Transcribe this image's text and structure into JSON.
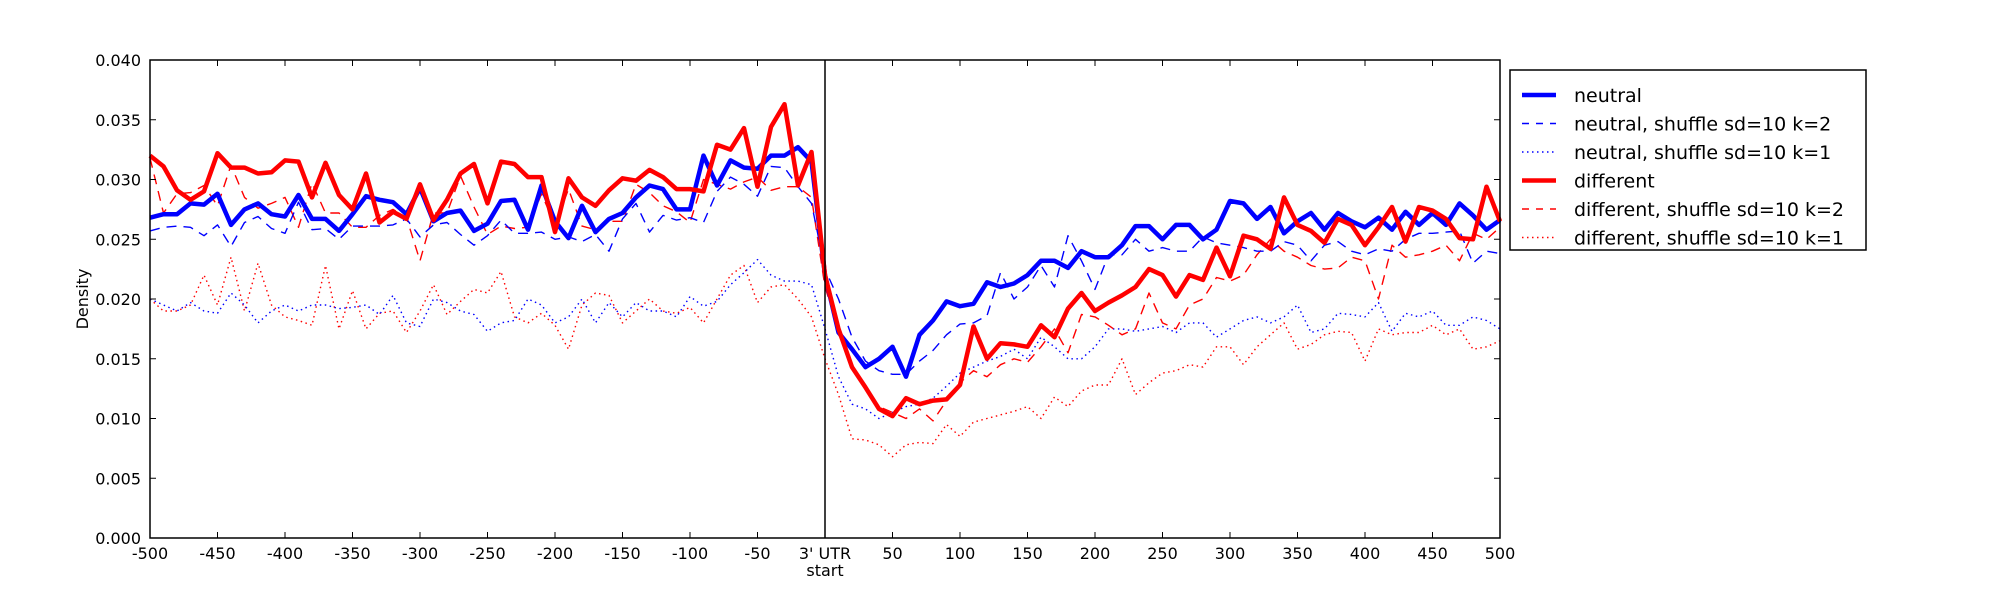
{
  "chart_data": {
    "type": "line",
    "title": "",
    "xlabel": "",
    "ylabel": "Density",
    "xlim": [
      -500,
      500
    ],
    "ylim": [
      0,
      0.04
    ],
    "grid": false,
    "legend_position": "outside-right-top",
    "vertical_marker": {
      "x": 0,
      "label": "3' UTR start"
    },
    "x_ticks": [
      "-500",
      "-450",
      "-400",
      "-350",
      "-300",
      "-250",
      "-200",
      "-150",
      "-100",
      "-50",
      "3' UTR\nstart",
      "50",
      "100",
      "150",
      "200",
      "250",
      "300",
      "350",
      "400",
      "450",
      "500"
    ],
    "x_tick_values": [
      -500,
      -450,
      -400,
      -350,
      -300,
      -250,
      -200,
      -150,
      -100,
      -50,
      0,
      50,
      100,
      150,
      200,
      250,
      300,
      350,
      400,
      450,
      500
    ],
    "y_ticks": [
      "0.000",
      "0.005",
      "0.010",
      "0.015",
      "0.020",
      "0.025",
      "0.030",
      "0.035",
      "0.040"
    ],
    "y_tick_values": [
      0,
      0.005,
      0.01,
      0.015,
      0.02,
      0.025,
      0.03,
      0.035,
      0.04
    ],
    "x": [
      -500,
      -490,
      -480,
      -470,
      -460,
      -450,
      -440,
      -430,
      -420,
      -410,
      -400,
      -390,
      -380,
      -370,
      -360,
      -350,
      -340,
      -330,
      -320,
      -310,
      -300,
      -290,
      -280,
      -270,
      -260,
      -250,
      -240,
      -230,
      -220,
      -210,
      -200,
      -190,
      -180,
      -170,
      -160,
      -150,
      -140,
      -130,
      -120,
      -110,
      -100,
      -90,
      -80,
      -70,
      -60,
      -50,
      -40,
      -30,
      -20,
      -10,
      0,
      10,
      20,
      30,
      40,
      50,
      60,
      70,
      80,
      90,
      100,
      110,
      120,
      130,
      140,
      150,
      160,
      170,
      180,
      190,
      200,
      210,
      220,
      230,
      240,
      250,
      260,
      270,
      280,
      290,
      300,
      310,
      320,
      330,
      340,
      350,
      360,
      370,
      380,
      390,
      400,
      410,
      420,
      430,
      440,
      450,
      460,
      470,
      480,
      490,
      500
    ],
    "series": [
      {
        "name": "neutral",
        "color": "#0000ff",
        "style": "solid",
        "values": [
          0.0268,
          0.0271,
          0.0271,
          0.028,
          0.0279,
          0.0288,
          0.0262,
          0.0275,
          0.028,
          0.0271,
          0.0269,
          0.0287,
          0.0267,
          0.0267,
          0.0257,
          0.0271,
          0.0286,
          0.0283,
          0.0281,
          0.0271,
          0.0293,
          0.0265,
          0.0272,
          0.0274,
          0.0257,
          0.0263,
          0.0282,
          0.0283,
          0.0258,
          0.0295,
          0.0265,
          0.0251,
          0.0278,
          0.0256,
          0.0267,
          0.0272,
          0.0285,
          0.0295,
          0.0292,
          0.0275,
          0.0275,
          0.032,
          0.0295,
          0.0316,
          0.031,
          0.0309,
          0.032,
          0.032,
          0.0327,
          0.0315,
          0.022,
          0.0172,
          0.0158,
          0.0143,
          0.015,
          0.016,
          0.0135,
          0.017,
          0.0182,
          0.0198,
          0.0194,
          0.0196,
          0.0214,
          0.021,
          0.0213,
          0.022,
          0.0232,
          0.0232,
          0.0226,
          0.024,
          0.0235,
          0.0235,
          0.0245,
          0.0261,
          0.0261,
          0.025,
          0.0262,
          0.0262,
          0.025,
          0.0258,
          0.0282,
          0.028,
          0.0267,
          0.0277,
          0.0255,
          0.0265,
          0.0272,
          0.0258,
          0.0272,
          0.0265,
          0.026,
          0.0268,
          0.0258,
          0.0273,
          0.0262,
          0.0272,
          0.0262,
          0.028,
          0.027,
          0.0258,
          0.0266
        ]
      },
      {
        "name": "neutral, shuffle sd=10 k=2",
        "color": "#0000ff",
        "style": "dashed",
        "values": [
          0.0257,
          0.026,
          0.0261,
          0.026,
          0.0253,
          0.0262,
          0.0244,
          0.0264,
          0.0269,
          0.0259,
          0.0255,
          0.0281,
          0.0258,
          0.0259,
          0.025,
          0.0261,
          0.0261,
          0.0261,
          0.0262,
          0.0267,
          0.0252,
          0.0262,
          0.0264,
          0.0254,
          0.0245,
          0.0253,
          0.0266,
          0.0255,
          0.0255,
          0.0256,
          0.025,
          0.0252,
          0.0248,
          0.0254,
          0.024,
          0.0267,
          0.028,
          0.0256,
          0.027,
          0.0266,
          0.0268,
          0.0264,
          0.029,
          0.0302,
          0.0296,
          0.0286,
          0.0311,
          0.031,
          0.0294,
          0.028,
          0.0225,
          0.02,
          0.0168,
          0.0148,
          0.014,
          0.0137,
          0.0137,
          0.0148,
          0.0157,
          0.017,
          0.0179,
          0.018,
          0.0186,
          0.0222,
          0.02,
          0.021,
          0.0228,
          0.021,
          0.0253,
          0.0232,
          0.0208,
          0.0237,
          0.0237,
          0.025,
          0.024,
          0.0243,
          0.024,
          0.024,
          0.0252,
          0.0247,
          0.0245,
          0.0243,
          0.024,
          0.024,
          0.0248,
          0.0245,
          0.0232,
          0.0245,
          0.0248,
          0.024,
          0.0237,
          0.0242,
          0.024,
          0.025,
          0.0255,
          0.0255,
          0.0256,
          0.0257,
          0.023,
          0.024,
          0.0238
        ]
      },
      {
        "name": "neutral, shuffle sd=10 k=1",
        "color": "#0000ff",
        "style": "dotted",
        "values": [
          0.02,
          0.0195,
          0.019,
          0.0197,
          0.019,
          0.0188,
          0.0205,
          0.0195,
          0.018,
          0.019,
          0.0195,
          0.019,
          0.0195,
          0.0195,
          0.0192,
          0.0193,
          0.0195,
          0.0187,
          0.0203,
          0.018,
          0.0177,
          0.02,
          0.0197,
          0.019,
          0.0187,
          0.0173,
          0.018,
          0.0182,
          0.02,
          0.0195,
          0.018,
          0.0185,
          0.02,
          0.018,
          0.0197,
          0.0185,
          0.0197,
          0.019,
          0.019,
          0.0185,
          0.0202,
          0.0194,
          0.0198,
          0.0212,
          0.0222,
          0.0233,
          0.022,
          0.0215,
          0.0215,
          0.0212,
          0.0175,
          0.0135,
          0.0112,
          0.0108,
          0.01,
          0.0105,
          0.011,
          0.0112,
          0.0117,
          0.0127,
          0.0138,
          0.0143,
          0.0148,
          0.0152,
          0.0158,
          0.015,
          0.0168,
          0.016,
          0.015,
          0.015,
          0.016,
          0.0175,
          0.0175,
          0.0173,
          0.0175,
          0.0177,
          0.0172,
          0.018,
          0.018,
          0.0168,
          0.0175,
          0.0182,
          0.0185,
          0.018,
          0.0185,
          0.0195,
          0.0172,
          0.0175,
          0.0188,
          0.0187,
          0.0185,
          0.0197,
          0.0173,
          0.0188,
          0.0185,
          0.019,
          0.0178,
          0.0178,
          0.0185,
          0.0182,
          0.0175
        ]
      },
      {
        "name": "different",
        "color": "#ff0000",
        "style": "solid",
        "values": [
          0.032,
          0.0311,
          0.0291,
          0.0283,
          0.029,
          0.0322,
          0.031,
          0.031,
          0.0305,
          0.0306,
          0.0316,
          0.0315,
          0.0285,
          0.0314,
          0.0287,
          0.0275,
          0.0305,
          0.0264,
          0.0273,
          0.0267,
          0.0296,
          0.0266,
          0.0283,
          0.0305,
          0.0313,
          0.028,
          0.0315,
          0.0313,
          0.0302,
          0.0302,
          0.0256,
          0.0301,
          0.0285,
          0.0278,
          0.0291,
          0.0301,
          0.0299,
          0.0308,
          0.0302,
          0.0292,
          0.0292,
          0.029,
          0.0329,
          0.0325,
          0.0343,
          0.0294,
          0.0344,
          0.0363,
          0.0295,
          0.0323,
          0.022,
          0.0175,
          0.0143,
          0.0126,
          0.0108,
          0.0102,
          0.0117,
          0.0112,
          0.0115,
          0.0116,
          0.0128,
          0.0177,
          0.015,
          0.0163,
          0.0162,
          0.016,
          0.0178,
          0.0168,
          0.0192,
          0.0205,
          0.019,
          0.0197,
          0.0203,
          0.021,
          0.0225,
          0.022,
          0.0202,
          0.022,
          0.0216,
          0.0243,
          0.0219,
          0.0253,
          0.025,
          0.0242,
          0.0285,
          0.0262,
          0.0257,
          0.0247,
          0.0267,
          0.0262,
          0.0245,
          0.026,
          0.0277,
          0.0248,
          0.0277,
          0.0274,
          0.0267,
          0.0251,
          0.025,
          0.0294,
          0.0265
        ]
      },
      {
        "name": "different, shuffle sd=10 k=2",
        "color": "#ff0000",
        "style": "dashed",
        "values": [
          0.0318,
          0.0272,
          0.0288,
          0.0289,
          0.0295,
          0.0278,
          0.0312,
          0.0285,
          0.0276,
          0.028,
          0.0285,
          0.026,
          0.0297,
          0.0272,
          0.0272,
          0.026,
          0.026,
          0.027,
          0.0275,
          0.0268,
          0.0232,
          0.0272,
          0.0272,
          0.0303,
          0.0277,
          0.0254,
          0.0261,
          0.0259,
          0.026,
          0.0288,
          0.0262,
          0.0292,
          0.0261,
          0.0258,
          0.0265,
          0.0265,
          0.0296,
          0.0289,
          0.0278,
          0.0273,
          0.0264,
          0.03,
          0.0296,
          0.0292,
          0.0298,
          0.0302,
          0.0291,
          0.0294,
          0.0294,
          0.0285,
          0.021,
          0.0175,
          0.0145,
          0.0125,
          0.011,
          0.0105,
          0.01,
          0.0108,
          0.0098,
          0.0115,
          0.013,
          0.014,
          0.0135,
          0.0145,
          0.015,
          0.0147,
          0.016,
          0.0175,
          0.0155,
          0.0187,
          0.0185,
          0.0178,
          0.017,
          0.0175,
          0.0205,
          0.018,
          0.0175,
          0.0195,
          0.02,
          0.0218,
          0.0215,
          0.022,
          0.0237,
          0.025,
          0.024,
          0.0235,
          0.0228,
          0.0225,
          0.0226,
          0.0235,
          0.0232,
          0.02,
          0.0245,
          0.0235,
          0.0237,
          0.024,
          0.0245,
          0.0232,
          0.0255,
          0.025,
          0.026
        ]
      },
      {
        "name": "different, shuffle sd=10 k=1",
        "color": "#ff0000",
        "style": "dotted",
        "values": [
          0.02,
          0.019,
          0.019,
          0.0195,
          0.022,
          0.0195,
          0.0235,
          0.019,
          0.023,
          0.0195,
          0.0185,
          0.0182,
          0.0178,
          0.0228,
          0.0175,
          0.0207,
          0.0175,
          0.0188,
          0.019,
          0.0172,
          0.019,
          0.0212,
          0.0187,
          0.0198,
          0.0208,
          0.0205,
          0.0223,
          0.0185,
          0.018,
          0.0188,
          0.0178,
          0.0158,
          0.0195,
          0.0205,
          0.0203,
          0.018,
          0.019,
          0.02,
          0.019,
          0.0188,
          0.0193,
          0.018,
          0.02,
          0.022,
          0.0228,
          0.0197,
          0.021,
          0.0212,
          0.02,
          0.0185,
          0.015,
          0.012,
          0.0083,
          0.0082,
          0.0078,
          0.0068,
          0.0078,
          0.008,
          0.0079,
          0.0095,
          0.0085,
          0.0097,
          0.01,
          0.0103,
          0.0106,
          0.011,
          0.01,
          0.0118,
          0.011,
          0.0123,
          0.0128,
          0.0128,
          0.015,
          0.012,
          0.013,
          0.0138,
          0.014,
          0.0145,
          0.0143,
          0.016,
          0.016,
          0.0145,
          0.016,
          0.017,
          0.018,
          0.0158,
          0.0162,
          0.017,
          0.0173,
          0.0172,
          0.0148,
          0.0175,
          0.017,
          0.0172,
          0.0172,
          0.0178,
          0.017,
          0.0175,
          0.0158,
          0.016,
          0.0165
        ]
      }
    ]
  }
}
